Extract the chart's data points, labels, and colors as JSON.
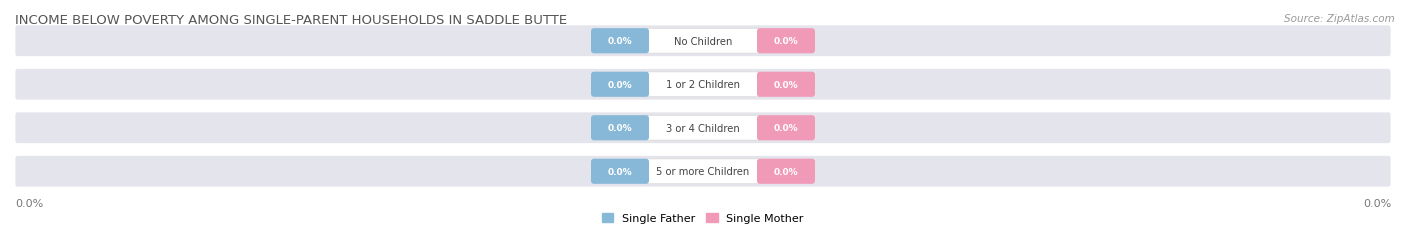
{
  "title": "INCOME BELOW POVERTY AMONG SINGLE-PARENT HOUSEHOLDS IN SADDLE BUTTE",
  "source": "Source: ZipAtlas.com",
  "categories": [
    "No Children",
    "1 or 2 Children",
    "3 or 4 Children",
    "5 or more Children"
  ],
  "father_values": [
    0.0,
    0.0,
    0.0,
    0.0
  ],
  "mother_values": [
    0.0,
    0.0,
    0.0,
    0.0
  ],
  "father_color": "#88b8d8",
  "mother_color": "#f09ab8",
  "bar_bg_color": "#e4e4ec",
  "title_fontsize": 9.5,
  "source_fontsize": 7.5,
  "background_color": "#ffffff",
  "legend_father": "Single Father",
  "legend_mother": "Single Mother",
  "value_label": "0.0%"
}
